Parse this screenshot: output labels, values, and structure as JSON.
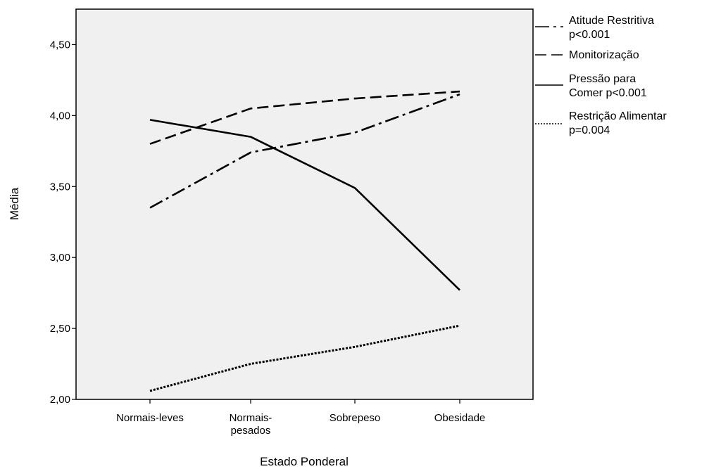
{
  "chart_data": {
    "type": "line",
    "xlabel": "Estado Ponderal",
    "ylabel": "Média",
    "categories": [
      {
        "lines": [
          "Normais-leves"
        ]
      },
      {
        "lines": [
          "Normais-",
          "pesados"
        ]
      },
      {
        "lines": [
          "Sobrepeso"
        ]
      },
      {
        "lines": [
          "Obesidade"
        ]
      }
    ],
    "ylim": [
      2.0,
      4.75
    ],
    "yticks": [
      {
        "value": 2.0,
        "label": "2,00"
      },
      {
        "value": 2.5,
        "label": "2,50"
      },
      {
        "value": 3.0,
        "label": "3,00"
      },
      {
        "value": 3.5,
        "label": "3,50"
      },
      {
        "value": 4.0,
        "label": "4,00"
      },
      {
        "value": 4.5,
        "label": "4,50"
      }
    ],
    "grid": false,
    "background_color": "#f0f0f0",
    "line_color": "#000000",
    "legend_position": "right",
    "series": [
      {
        "name_lines": [
          "Atitude Restritiva",
          "p<0.001"
        ],
        "dash": "dash-dot",
        "values": [
          3.35,
          3.74,
          3.88,
          4.15
        ]
      },
      {
        "name_lines": [
          "Monitorização"
        ],
        "dash": "dashed",
        "values": [
          3.8,
          4.05,
          4.12,
          4.17
        ]
      },
      {
        "name_lines": [
          "Pressão para",
          "Comer p<0.001"
        ],
        "dash": "solid",
        "values": [
          3.97,
          3.85,
          3.49,
          2.77
        ]
      },
      {
        "name_lines": [
          "Restrição Alimentar",
          "p=0.004"
        ],
        "dash": "dotted",
        "values": [
          2.06,
          2.25,
          2.37,
          2.52
        ]
      }
    ]
  }
}
